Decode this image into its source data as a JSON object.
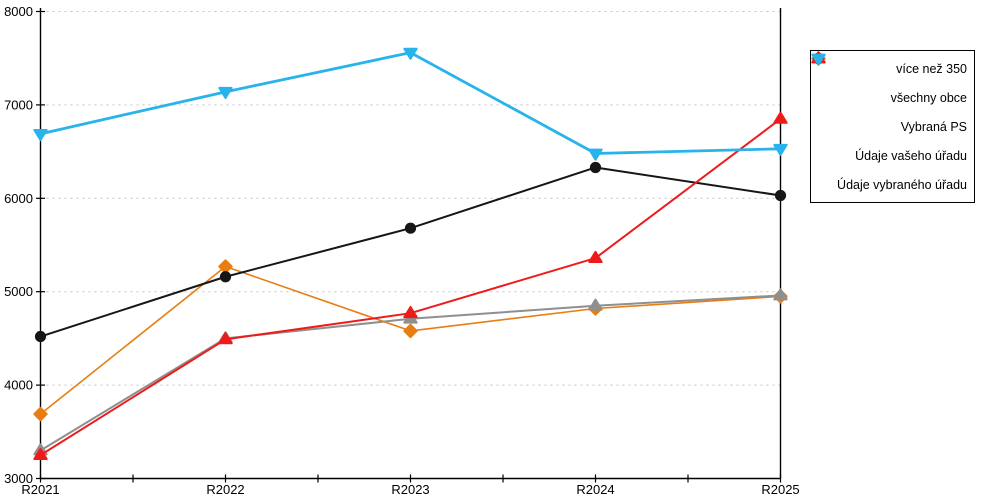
{
  "chart_data": {
    "type": "line",
    "title": "",
    "categories": [
      "R2021",
      "R2022",
      "R2023",
      "R2024",
      "R2025"
    ],
    "series": [
      {
        "name": "více než 350",
        "marker": "diamond",
        "color": "#e87d12",
        "line_width": 1.6,
        "values": [
          3690,
          5270,
          4580,
          4820,
          4950
        ]
      },
      {
        "name": "všechny obce",
        "marker": "circle",
        "color": "#161616",
        "line_width": 2.0,
        "values": [
          4520,
          5160,
          5680,
          6330,
          6030
        ]
      },
      {
        "name": "Vybraná PS",
        "marker": "triangle-up",
        "color": "#8f8f8f",
        "line_width": 2.0,
        "values": [
          3300,
          4500,
          4710,
          4850,
          4960
        ]
      },
      {
        "name": "Údaje vašeho úřadu",
        "marker": "triangle-up",
        "color": "#ee1b1b",
        "line_width": 2.0,
        "values": [
          3250,
          4490,
          4770,
          5360,
          6850
        ]
      },
      {
        "name": "Údaje vybraného úřadu",
        "marker": "triangle-down",
        "color": "#29b3ec",
        "line_width": 2.8,
        "values": [
          6690,
          7140,
          7560,
          6480,
          6530
        ]
      }
    ],
    "ylim": [
      3000,
      8000
    ],
    "y_tick_step": 1000,
    "y_tick_labels": [
      "3000",
      "4000",
      "5000",
      "6000",
      "7000",
      "8000"
    ],
    "grid": {
      "horizontal": "dashed",
      "color": "#c3c3c3"
    },
    "axis_color": "#000000",
    "legend_position": "right"
  }
}
